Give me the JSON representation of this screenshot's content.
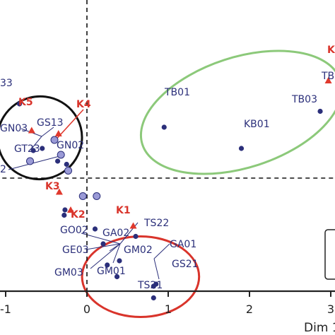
{
  "chart_data": {
    "type": "scatter",
    "title": "",
    "xlabel": "Dim 1",
    "ylabel": "",
    "xlim": [
      -1.05,
      3.0
    ],
    "ylim": [
      -1.45,
      1.1
    ],
    "grid": false,
    "x_ticks": [
      {
        "value": -1,
        "label": "-1"
      },
      {
        "value": 0,
        "label": "0"
      },
      {
        "value": 1,
        "label": "1"
      },
      {
        "value": 2,
        "label": "2"
      },
      {
        "value": 3,
        "label": "3"
      }
    ],
    "colors": {
      "point": "#2b2f7a",
      "light_point": "#9a9ad6",
      "centroid": "#e0392d",
      "label_red": "#d9342b",
      "ellipse_black": "#111111",
      "ellipse_green": "#8cc97a",
      "ellipse_red": "#d9342b",
      "reference_line": "#111111"
    },
    "points": [
      {
        "label": "33",
        "x": -0.83,
        "y": 0.7,
        "style": "dark"
      },
      {
        "label": "GS13",
        "x": -0.55,
        "y": 0.28,
        "style": "dark"
      },
      {
        "label": "GN03",
        "x": -0.66,
        "y": 0.26,
        "style": "dark"
      },
      {
        "label": "GT23",
        "x": -0.7,
        "y": 0.16,
        "style": "light"
      },
      {
        "label": "GN02",
        "x": -0.36,
        "y": 0.16,
        "style": "dark"
      },
      {
        "label": "2",
        "x": -0.25,
        "y": 0.13,
        "style": "dark"
      },
      {
        "label": "TB01",
        "x": 0.95,
        "y": 0.48,
        "style": "dark"
      },
      {
        "label": "TB03",
        "x": 2.87,
        "y": 0.63,
        "style": "dark"
      },
      {
        "label": "TB",
        "x": 2.87,
        "y": 0.63,
        "style": "none"
      },
      {
        "label": "KB01",
        "x": 1.9,
        "y": 0.28,
        "style": "dark"
      },
      {
        "label": "GO02",
        "x": -0.28,
        "y": -0.35,
        "style": "dark"
      },
      {
        "label": "GA02",
        "x": 0.1,
        "y": -0.48,
        "style": "dark"
      },
      {
        "label": "TS22",
        "x": 0.6,
        "y": -0.55,
        "style": "dark"
      },
      {
        "label": "GE03",
        "x": 0.2,
        "y": -0.62,
        "style": "dark"
      },
      {
        "label": "GM02",
        "x": 0.4,
        "y": -0.78,
        "style": "dark"
      },
      {
        "label": "GM03",
        "x": 0.25,
        "y": -0.82,
        "style": "dark"
      },
      {
        "label": "GM01",
        "x": 0.37,
        "y": -0.93,
        "style": "dark"
      },
      {
        "label": "GA01",
        "x": 0.85,
        "y": -1.0,
        "style": "dark"
      },
      {
        "label": "GS21",
        "x": 0.82,
        "y": -1.02,
        "style": "dark"
      },
      {
        "label": "TS21",
        "x": 0.82,
        "y": -1.13,
        "style": "dark"
      },
      {
        "label": "",
        "x": -0.32,
        "y": 0.22,
        "style": "light"
      },
      {
        "label": "",
        "x": -0.4,
        "y": 0.36,
        "style": "light"
      },
      {
        "label": "",
        "x": -0.23,
        "y": 0.07,
        "style": "light"
      },
      {
        "label": "",
        "x": -0.05,
        "y": -0.17,
        "style": "light"
      },
      {
        "label": "",
        "x": 0.12,
        "y": -0.17,
        "style": "light"
      },
      {
        "label": "",
        "x": -0.27,
        "y": -0.3,
        "style": "dark"
      }
    ],
    "centroids": [
      {
        "label": "K5",
        "x": -0.68,
        "y": 0.45
      },
      {
        "label": "K4",
        "x": -0.35,
        "y": 0.42
      },
      {
        "label": "K3",
        "x": -0.34,
        "y": -0.13
      },
      {
        "label": "K2",
        "x": -0.2,
        "y": -0.3
      },
      {
        "label": "K1",
        "x": 0.57,
        "y": -0.45
      },
      {
        "label": "K",
        "x": 2.97,
        "y": 0.92
      }
    ],
    "ellipses": [
      {
        "cx": -0.58,
        "cy": 0.38,
        "rx": 0.52,
        "ry": 0.39,
        "angle": -14,
        "color": "black"
      },
      {
        "cx": 1.9,
        "cy": 0.62,
        "rx": 1.28,
        "ry": 0.52,
        "angle": -18,
        "color": "green"
      },
      {
        "cx": 0.66,
        "cy": -0.93,
        "rx": 0.72,
        "ry": 0.38,
        "angle": 0,
        "color": "red"
      }
    ]
  }
}
